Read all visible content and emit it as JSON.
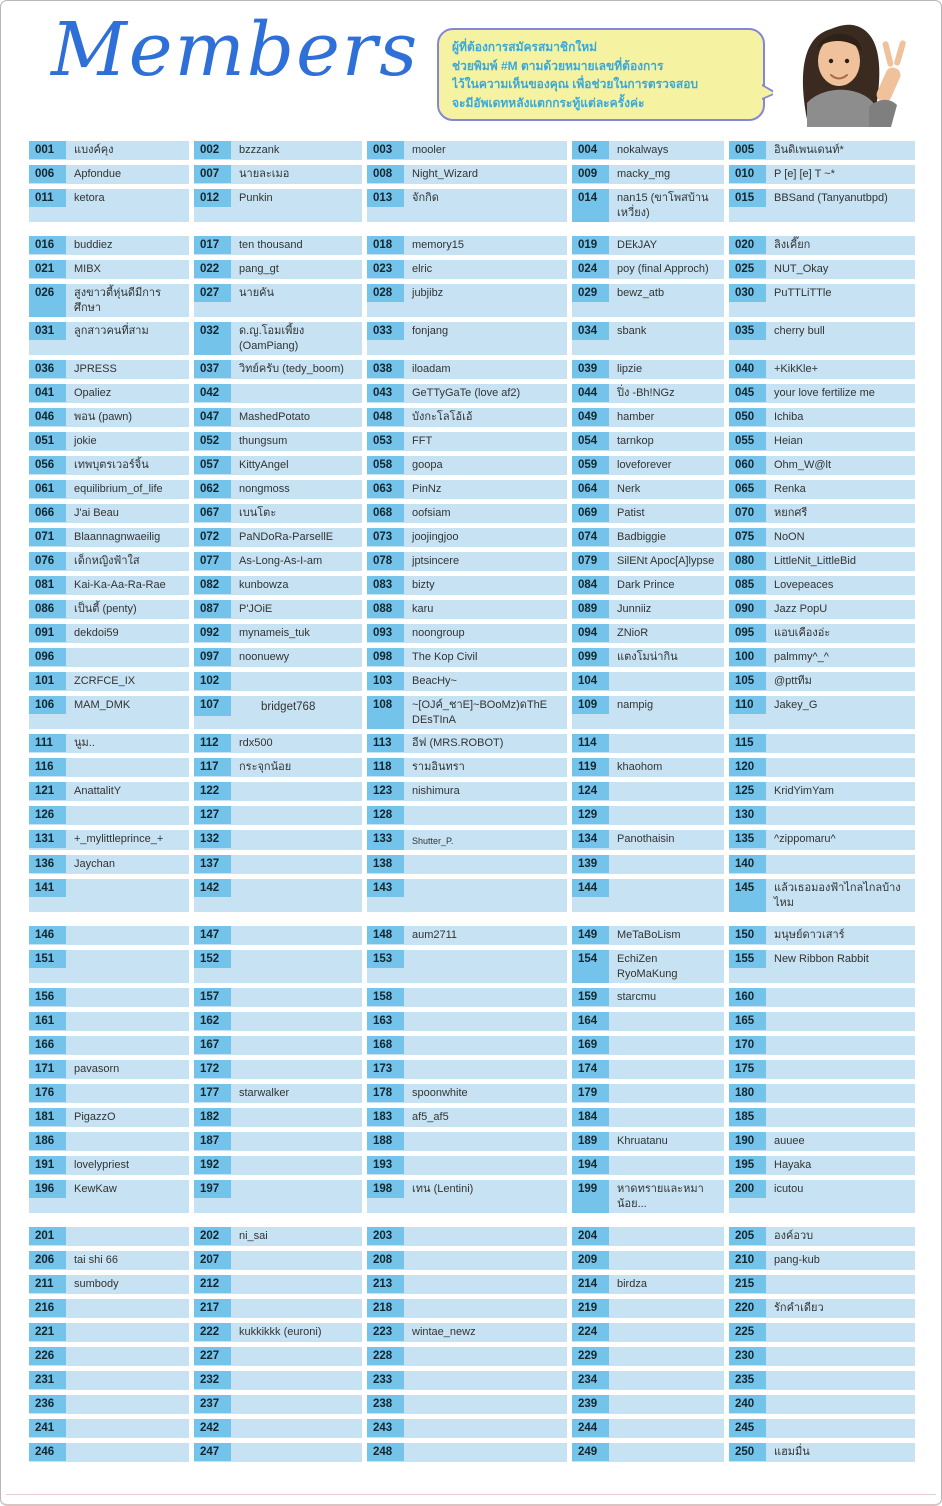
{
  "header": {
    "title": "Members",
    "bubble": {
      "lines": [
        "ผู้ที่ต้องการสมัครสมาชิกใหม่",
        "ช่วยพิมพ์ #M ตามด้วยหมายเลขที่ต้องการ",
        "ไว้ในความเห็นของคุณ เพื่อช่วยในการตรวจสอบ",
        "จะมีอัพเดทหลังแตกกระทู้แต่ละครั้งค่ะ"
      ]
    }
  },
  "colors": {
    "title-blue": "#2e6fd8",
    "badge-blue": "#74c3ea",
    "cell-blue": "#c7e3f3",
    "number-text": "#16262f",
    "name-text": "#333333",
    "bubble-bg": "#f5f3a1",
    "bubble-border": "#8287d9",
    "bubble-text": "#3aa8db"
  },
  "members": [
    {
      "n": "001",
      "name": "แบงค์คุง"
    },
    {
      "n": "002",
      "name": "bzzzank"
    },
    {
      "n": "003",
      "name": "mooler"
    },
    {
      "n": "004",
      "name": "nokalways"
    },
    {
      "n": "005",
      "name": "อินดิเพนเดนท์*"
    },
    {
      "n": "006",
      "name": "Apfondue"
    },
    {
      "n": "007",
      "name": "นายละเมอ"
    },
    {
      "n": "008",
      "name": "Night_Wizard"
    },
    {
      "n": "009",
      "name": "macky_mg"
    },
    {
      "n": "010",
      "name": "P [e] [e] T ~*"
    },
    {
      "n": "011",
      "name": "ketora"
    },
    {
      "n": "012",
      "name": "Punkin"
    },
    {
      "n": "013",
      "name": "จักกิด"
    },
    {
      "n": "014",
      "name": "nan15 (ขาโพสบ้านเหวี่ยง)"
    },
    {
      "n": "015",
      "name": "BBSand (Tanyanutbpd)"
    },
    {
      "n": "016",
      "name": "buddiez"
    },
    {
      "n": "017",
      "name": "ten thousand"
    },
    {
      "n": "018",
      "name": "memory15"
    },
    {
      "n": "019",
      "name": "DEkJAY"
    },
    {
      "n": "020",
      "name": "ลิงเคี๊ยก"
    },
    {
      "n": "021",
      "name": "MIBX"
    },
    {
      "n": "022",
      "name": "pang_gt"
    },
    {
      "n": "023",
      "name": "elric"
    },
    {
      "n": "024",
      "name": "poy (final Approch)"
    },
    {
      "n": "025",
      "name": "NUT_Okay"
    },
    {
      "n": "026",
      "name": "สูงขาวตี้หุ่นดีมีการศึกษา"
    },
    {
      "n": "027",
      "name": "นายคัน"
    },
    {
      "n": "028",
      "name": "jubjibz"
    },
    {
      "n": "029",
      "name": "bewz_atb"
    },
    {
      "n": "030",
      "name": "PuTTLiTTle"
    },
    {
      "n": "031",
      "name": "ลูกสาวคนที่สาม"
    },
    {
      "n": "032",
      "name": "ด.ญ.โอมเพี้ยง (OamPiang)"
    },
    {
      "n": "033",
      "name": "fonjang"
    },
    {
      "n": "034",
      "name": "sbank"
    },
    {
      "n": "035",
      "name": "cherry bull"
    },
    {
      "n": "036",
      "name": "JPRESS"
    },
    {
      "n": "037",
      "name": "วิทย์ครับ (tedy_boom)"
    },
    {
      "n": "038",
      "name": "iloadam"
    },
    {
      "n": "039",
      "name": "lipzie"
    },
    {
      "n": "040",
      "name": "+KikKle+"
    },
    {
      "n": "041",
      "name": "Opaliez"
    },
    {
      "n": "042",
      "name": ""
    },
    {
      "n": "043",
      "name": "GeTTyGaTe (love af2)"
    },
    {
      "n": "044",
      "name": "ปิ่ง -Bh!NGz"
    },
    {
      "n": "045",
      "name": "your love fertilize me"
    },
    {
      "n": "046",
      "name": "พอน (pawn)"
    },
    {
      "n": "047",
      "name": "MashedPotato"
    },
    {
      "n": "048",
      "name": "บังกะโลโอ้เอ้"
    },
    {
      "n": "049",
      "name": "hamber"
    },
    {
      "n": "050",
      "name": "Ichiba"
    },
    {
      "n": "051",
      "name": "jokie"
    },
    {
      "n": "052",
      "name": "thungsum"
    },
    {
      "n": "053",
      "name": "FFT"
    },
    {
      "n": "054",
      "name": "tarnkop"
    },
    {
      "n": "055",
      "name": "Heian"
    },
    {
      "n": "056",
      "name": "เทพบุตรเวอร์จิ้น"
    },
    {
      "n": "057",
      "name": "KittyAngel"
    },
    {
      "n": "058",
      "name": "goopa"
    },
    {
      "n": "059",
      "name": "loveforever"
    },
    {
      "n": "060",
      "name": "Ohm_W@lt"
    },
    {
      "n": "061",
      "name": "equilibrium_of_life"
    },
    {
      "n": "062",
      "name": "nongmoss"
    },
    {
      "n": "063",
      "name": "PinNz"
    },
    {
      "n": "064",
      "name": "Nerk"
    },
    {
      "n": "065",
      "name": "Renka"
    },
    {
      "n": "066",
      "name": "J'ai Beau"
    },
    {
      "n": "067",
      "name": "เบนโตะ"
    },
    {
      "n": "068",
      "name": "oofsiam"
    },
    {
      "n": "069",
      "name": "Patist"
    },
    {
      "n": "070",
      "name": "หยกศรี"
    },
    {
      "n": "071",
      "name": "Blaannagnwaeilig"
    },
    {
      "n": "072",
      "name": "PaNDoRa-ParsellE"
    },
    {
      "n": "073",
      "name": "joojingjoo"
    },
    {
      "n": "074",
      "name": "Badbiggie"
    },
    {
      "n": "075",
      "name": "NoON"
    },
    {
      "n": "076",
      "name": "เด็กหญิงฟ้าใส"
    },
    {
      "n": "077",
      "name": "As-Long-As-I-am"
    },
    {
      "n": "078",
      "name": "jptsincere"
    },
    {
      "n": "079",
      "name": "SilENt Apoc[A]lypse"
    },
    {
      "n": "080",
      "name": "LittleNit_LittleBid"
    },
    {
      "n": "081",
      "name": "Kai-Ka-Aa-Ra-Rae"
    },
    {
      "n": "082",
      "name": "kunbowza"
    },
    {
      "n": "083",
      "name": "bizty"
    },
    {
      "n": "084",
      "name": "Dark Prince"
    },
    {
      "n": "085",
      "name": "Lovepeaces"
    },
    {
      "n": "086",
      "name": "เป็นตี้ (penty)"
    },
    {
      "n": "087",
      "name": "P'JOiE"
    },
    {
      "n": "088",
      "name": "karu"
    },
    {
      "n": "089",
      "name": "Junniiz"
    },
    {
      "n": "090",
      "name": "Jazz PopU"
    },
    {
      "n": "091",
      "name": "dekdoi59"
    },
    {
      "n": "092",
      "name": "mynameis_tuk"
    },
    {
      "n": "093",
      "name": "noongroup"
    },
    {
      "n": "094",
      "name": "ZNioR"
    },
    {
      "n": "095",
      "name": "แอบเคืองอ่ะ"
    },
    {
      "n": "096",
      "name": ""
    },
    {
      "n": "097",
      "name": "noonuewy"
    },
    {
      "n": "098",
      "name": "The Kop Civil"
    },
    {
      "n": "099",
      "name": "แตงโมน่ากิน"
    },
    {
      "n": "100",
      "name": "palmmy^_^"
    },
    {
      "n": "101",
      "name": "ZCRFCE_IX"
    },
    {
      "n": "102",
      "name": ""
    },
    {
      "n": "103",
      "name": "BeacHy~"
    },
    {
      "n": "104",
      "name": ""
    },
    {
      "n": "105",
      "name": "@pttทีม"
    },
    {
      "n": "106",
      "name": "MAM_DMK"
    },
    {
      "n": "107",
      "name": "bridget768",
      "variant": "indent"
    },
    {
      "n": "108",
      "name": "~[OJค์_ชาE]~BOoMz)ดThE DEsTInA"
    },
    {
      "n": "109",
      "name": "nampig"
    },
    {
      "n": "110",
      "name": "Jakey_G"
    },
    {
      "n": "111",
      "name": "นูม.."
    },
    {
      "n": "112",
      "name": "rdx500"
    },
    {
      "n": "113",
      "name": "อีฟ (MRS.ROBOT)"
    },
    {
      "n": "114",
      "name": ""
    },
    {
      "n": "115",
      "name": ""
    },
    {
      "n": "116",
      "name": ""
    },
    {
      "n": "117",
      "name": "กระจุกน้อย"
    },
    {
      "n": "118",
      "name": "รามอินทรา"
    },
    {
      "n": "119",
      "name": "khaohom"
    },
    {
      "n": "120",
      "name": ""
    },
    {
      "n": "121",
      "name": "AnattalitY"
    },
    {
      "n": "122",
      "name": ""
    },
    {
      "n": "123",
      "name": "nishimura"
    },
    {
      "n": "124",
      "name": ""
    },
    {
      "n": "125",
      "name": "KridYimYam"
    },
    {
      "n": "126",
      "name": ""
    },
    {
      "n": "127",
      "name": ""
    },
    {
      "n": "128",
      "name": ""
    },
    {
      "n": "129",
      "name": ""
    },
    {
      "n": "130",
      "name": ""
    },
    {
      "n": "131",
      "name": "+_mylittleprince_+"
    },
    {
      "n": "132",
      "name": ""
    },
    {
      "n": "133",
      "name": "Shutter_P.",
      "variant": "small"
    },
    {
      "n": "134",
      "name": "Panothaisin"
    },
    {
      "n": "135",
      "name": "^zippomaru^"
    },
    {
      "n": "136",
      "name": "Jaychan"
    },
    {
      "n": "137",
      "name": ""
    },
    {
      "n": "138",
      "name": ""
    },
    {
      "n": "139",
      "name": ""
    },
    {
      "n": "140",
      "name": ""
    },
    {
      "n": "141",
      "name": ""
    },
    {
      "n": "142",
      "name": ""
    },
    {
      "n": "143",
      "name": ""
    },
    {
      "n": "144",
      "name": ""
    },
    {
      "n": "145",
      "name": "แล้วเธอมองฟ้าไกลไกลบ้างไหม"
    },
    {
      "n": "146",
      "name": ""
    },
    {
      "n": "147",
      "name": ""
    },
    {
      "n": "148",
      "name": "aum2711"
    },
    {
      "n": "149",
      "name": "MeTaBoLism"
    },
    {
      "n": "150",
      "name": "มนุษย์ดาวเสาร์"
    },
    {
      "n": "151",
      "name": ""
    },
    {
      "n": "152",
      "name": ""
    },
    {
      "n": "153",
      "name": ""
    },
    {
      "n": "154",
      "name": "EchiZen RyoMaKung"
    },
    {
      "n": "155",
      "name": "New Ribbon Rabbit"
    },
    {
      "n": "156",
      "name": ""
    },
    {
      "n": "157",
      "name": ""
    },
    {
      "n": "158",
      "name": ""
    },
    {
      "n": "159",
      "name": "starcmu"
    },
    {
      "n": "160",
      "name": ""
    },
    {
      "n": "161",
      "name": ""
    },
    {
      "n": "162",
      "name": ""
    },
    {
      "n": "163",
      "name": ""
    },
    {
      "n": "164",
      "name": ""
    },
    {
      "n": "165",
      "name": ""
    },
    {
      "n": "166",
      "name": ""
    },
    {
      "n": "167",
      "name": ""
    },
    {
      "n": "168",
      "name": ""
    },
    {
      "n": "169",
      "name": ""
    },
    {
      "n": "170",
      "name": ""
    },
    {
      "n": "171",
      "name": "pavasorn"
    },
    {
      "n": "172",
      "name": ""
    },
    {
      "n": "173",
      "name": ""
    },
    {
      "n": "174",
      "name": ""
    },
    {
      "n": "175",
      "name": ""
    },
    {
      "n": "176",
      "name": ""
    },
    {
      "n": "177",
      "name": "starwalker"
    },
    {
      "n": "178",
      "name": "spoonwhite"
    },
    {
      "n": "179",
      "name": ""
    },
    {
      "n": "180",
      "name": ""
    },
    {
      "n": "181",
      "name": "PigazzO"
    },
    {
      "n": "182",
      "name": ""
    },
    {
      "n": "183",
      "name": "af5_af5"
    },
    {
      "n": "184",
      "name": ""
    },
    {
      "n": "185",
      "name": ""
    },
    {
      "n": "186",
      "name": ""
    },
    {
      "n": "187",
      "name": ""
    },
    {
      "n": "188",
      "name": ""
    },
    {
      "n": "189",
      "name": "Khruatanu"
    },
    {
      "n": "190",
      "name": "auuee"
    },
    {
      "n": "191",
      "name": "lovelypriest"
    },
    {
      "n": "192",
      "name": ""
    },
    {
      "n": "193",
      "name": ""
    },
    {
      "n": "194",
      "name": ""
    },
    {
      "n": "195",
      "name": "Hayaka"
    },
    {
      "n": "196",
      "name": "KewKaw"
    },
    {
      "n": "197",
      "name": ""
    },
    {
      "n": "198",
      "name": "เทน (Lentini)"
    },
    {
      "n": "199",
      "name": "หาดทรายและหมาน้อย..."
    },
    {
      "n": "200",
      "name": "icutou"
    },
    {
      "n": "201",
      "name": ""
    },
    {
      "n": "202",
      "name": "ni_sai"
    },
    {
      "n": "203",
      "name": ""
    },
    {
      "n": "204",
      "name": ""
    },
    {
      "n": "205",
      "name": "องค์อวบ"
    },
    {
      "n": "206",
      "name": "tai shi 66"
    },
    {
      "n": "207",
      "name": ""
    },
    {
      "n": "208",
      "name": ""
    },
    {
      "n": "209",
      "name": ""
    },
    {
      "n": "210",
      "name": "pang-kub"
    },
    {
      "n": "211",
      "name": "sumbody"
    },
    {
      "n": "212",
      "name": ""
    },
    {
      "n": "213",
      "name": ""
    },
    {
      "n": "214",
      "name": "birdza"
    },
    {
      "n": "215",
      "name": ""
    },
    {
      "n": "216",
      "name": ""
    },
    {
      "n": "217",
      "name": ""
    },
    {
      "n": "218",
      "name": ""
    },
    {
      "n": "219",
      "name": ""
    },
    {
      "n": "220",
      "name": "รักคำเดียว"
    },
    {
      "n": "221",
      "name": ""
    },
    {
      "n": "222",
      "name": "kukkikkk (euroni)"
    },
    {
      "n": "223",
      "name": "wintae_newz"
    },
    {
      "n": "224",
      "name": ""
    },
    {
      "n": "225",
      "name": ""
    },
    {
      "n": "226",
      "name": ""
    },
    {
      "n": "227",
      "name": ""
    },
    {
      "n": "228",
      "name": ""
    },
    {
      "n": "229",
      "name": ""
    },
    {
      "n": "230",
      "name": ""
    },
    {
      "n": "231",
      "name": ""
    },
    {
      "n": "232",
      "name": ""
    },
    {
      "n": "233",
      "name": ""
    },
    {
      "n": "234",
      "name": ""
    },
    {
      "n": "235",
      "name": ""
    },
    {
      "n": "236",
      "name": ""
    },
    {
      "n": "237",
      "name": ""
    },
    {
      "n": "238",
      "name": ""
    },
    {
      "n": "239",
      "name": ""
    },
    {
      "n": "240",
      "name": ""
    },
    {
      "n": "241",
      "name": ""
    },
    {
      "n": "242",
      "name": ""
    },
    {
      "n": "243",
      "name": ""
    },
    {
      "n": "244",
      "name": ""
    },
    {
      "n": "245",
      "name": ""
    },
    {
      "n": "246",
      "name": ""
    },
    {
      "n": "247",
      "name": ""
    },
    {
      "n": "248",
      "name": ""
    },
    {
      "n": "249",
      "name": ""
    },
    {
      "n": "250",
      "name": "แฮมมื่น"
    }
  ]
}
